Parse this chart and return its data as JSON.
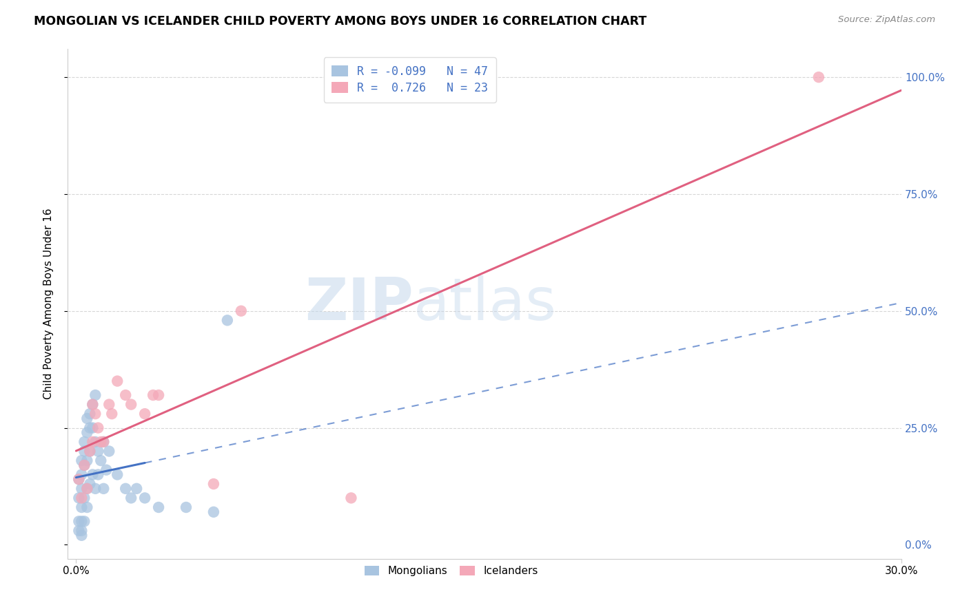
{
  "title": "MONGOLIAN VS ICELANDER CHILD POVERTY AMONG BOYS UNDER 16 CORRELATION CHART",
  "source": "Source: ZipAtlas.com",
  "ylabel_label": "Child Poverty Among Boys Under 16",
  "xlim": [
    0.0,
    0.3
  ],
  "ylim": [
    0.0,
    1.05
  ],
  "watermark_zip": "ZIP",
  "watermark_atlas": "atlas",
  "legend_mongolian": "Mongolians",
  "legend_icelander": "Icelanders",
  "r_mongolian": "-0.099",
  "n_mongolian": "47",
  "r_icelander": "0.726",
  "n_icelander": "23",
  "mongolian_color": "#a8c4e0",
  "icelander_color": "#f4a8b8",
  "trend_mongolian_color": "#4472c4",
  "trend_icelander_color": "#e06080",
  "background_color": "#ffffff",
  "grid_color": "#cccccc",
  "right_axis_color": "#4472c4",
  "mongolian_x": [
    0.001,
    0.001,
    0.001,
    0.001,
    0.002,
    0.002,
    0.002,
    0.002,
    0.002,
    0.002,
    0.002,
    0.003,
    0.003,
    0.003,
    0.003,
    0.003,
    0.004,
    0.004,
    0.004,
    0.004,
    0.004,
    0.005,
    0.005,
    0.005,
    0.005,
    0.006,
    0.006,
    0.006,
    0.007,
    0.007,
    0.007,
    0.008,
    0.008,
    0.009,
    0.01,
    0.01,
    0.011,
    0.012,
    0.015,
    0.018,
    0.02,
    0.022,
    0.025,
    0.03,
    0.04,
    0.05,
    0.055
  ],
  "mongolian_y": [
    0.14,
    0.1,
    0.05,
    0.03,
    0.18,
    0.15,
    0.12,
    0.08,
    0.05,
    0.03,
    0.02,
    0.22,
    0.2,
    0.17,
    0.1,
    0.05,
    0.27,
    0.24,
    0.18,
    0.12,
    0.08,
    0.28,
    0.25,
    0.2,
    0.13,
    0.3,
    0.25,
    0.15,
    0.32,
    0.22,
    0.12,
    0.2,
    0.15,
    0.18,
    0.22,
    0.12,
    0.16,
    0.2,
    0.15,
    0.12,
    0.1,
    0.12,
    0.1,
    0.08,
    0.08,
    0.07,
    0.48
  ],
  "icelander_x": [
    0.001,
    0.002,
    0.003,
    0.004,
    0.005,
    0.006,
    0.006,
    0.007,
    0.008,
    0.009,
    0.01,
    0.012,
    0.013,
    0.015,
    0.018,
    0.02,
    0.025,
    0.028,
    0.03,
    0.05,
    0.06,
    0.1,
    0.27
  ],
  "icelander_y": [
    0.14,
    0.1,
    0.17,
    0.12,
    0.2,
    0.22,
    0.3,
    0.28,
    0.25,
    0.22,
    0.22,
    0.3,
    0.28,
    0.35,
    0.32,
    0.3,
    0.28,
    0.32,
    0.32,
    0.13,
    0.5,
    0.1,
    1.0
  ]
}
